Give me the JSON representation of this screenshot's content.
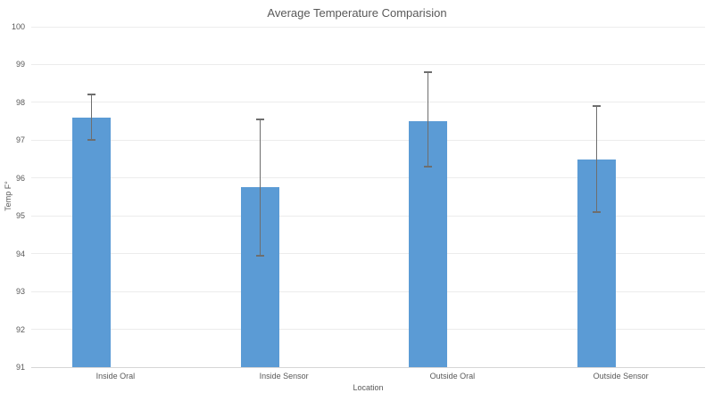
{
  "chart_data": {
    "type": "bar",
    "title": "Average Temperature Comparision",
    "xlabel": "Location",
    "ylabel": "Temp F°",
    "ylim": [
      91,
      100
    ],
    "yticks": [
      91,
      92,
      93,
      94,
      95,
      96,
      97,
      98,
      99,
      100
    ],
    "categories": [
      "Inside Oral",
      "Inside Sensor",
      "Outside Oral",
      "Outside Sensor"
    ],
    "values": [
      97.6,
      95.75,
      97.5,
      96.5
    ],
    "error_upper": [
      98.2,
      97.55,
      98.8,
      97.9
    ],
    "error_lower": [
      97.0,
      93.95,
      96.3,
      95.1
    ],
    "legend": "none",
    "grid": "horizontal",
    "colors": {
      "bar": "#5B9BD5",
      "gridline": "#ECECEC",
      "axis_line": "#D6D6D6",
      "error_bar": "#6E6E6E",
      "text": "#595959"
    }
  }
}
